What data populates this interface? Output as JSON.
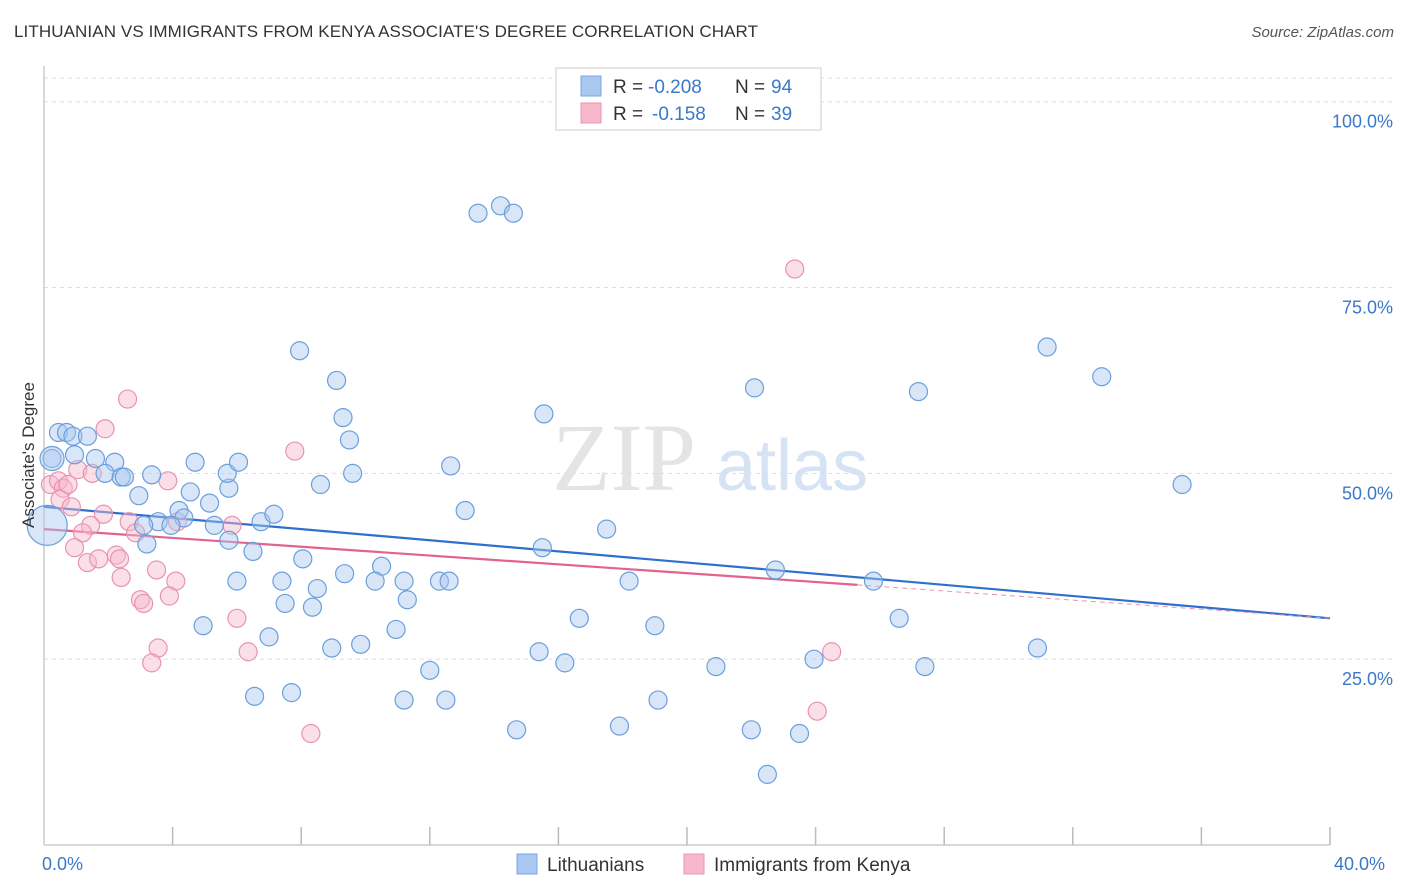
{
  "title": "LITHUANIAN VS IMMIGRANTS FROM KENYA ASSOCIATE'S DEGREE CORRELATION CHART",
  "source": "Source: ZipAtlas.com",
  "watermark": {
    "zip": "ZIP",
    "atlas": "atlas"
  },
  "legend": {
    "r_label": "R =",
    "n_label": "N =",
    "rows": [
      {
        "r": "-0.208",
        "n": "94",
        "color": "#a9c8f0"
      },
      {
        "r": "-0.158",
        "n": "39",
        "color": "#f7b8cc"
      }
    ]
  },
  "bottom_legend": [
    "Lithuanians",
    "Immigrants from Kenya"
  ],
  "colors": {
    "blue": "#3a78c9",
    "pink": "#e76f9a",
    "blue_fill": "#a9c8f0",
    "pink_fill": "#f7b8cc"
  },
  "chart_data": {
    "type": "scatter",
    "xlabel": "",
    "ylabel": "Associate's Degree",
    "xlim": [
      0,
      40
    ],
    "ylim": [
      0,
      104
    ],
    "x_tick_labels": [
      "0.0%",
      "40.0%"
    ],
    "y_ticks": [
      25,
      50,
      75,
      100
    ],
    "y_tick_labels": [
      "25.0%",
      "50.0%",
      "75.0%",
      "100.0%"
    ],
    "grid": "horizontal dashed",
    "legend_position": "top-center",
    "series": [
      {
        "name": "Lithuanians",
        "r": -0.208,
        "n": 94,
        "trend": [
          [
            0,
            45.5
          ],
          [
            40,
            30.5
          ]
        ],
        "points": [
          [
            0.25,
            52
          ],
          [
            0.45,
            55.5
          ],
          [
            0.7,
            55.5
          ],
          [
            0.9,
            55
          ],
          [
            1.35,
            55
          ],
          [
            0.95,
            52.5
          ],
          [
            1.6,
            52
          ],
          [
            2.2,
            51.5
          ],
          [
            1.9,
            50
          ],
          [
            2.4,
            49.5
          ],
          [
            2.5,
            49.5
          ],
          [
            3.35,
            49.8
          ],
          [
            2.95,
            47
          ],
          [
            4.7,
            51.5
          ],
          [
            4.55,
            47.5
          ],
          [
            5.75,
            48
          ],
          [
            5.7,
            50
          ],
          [
            6.05,
            51.5
          ],
          [
            5.15,
            46
          ],
          [
            4.2,
            45
          ],
          [
            4.35,
            44
          ],
          [
            3.55,
            43.5
          ],
          [
            3.95,
            43
          ],
          [
            3.1,
            43
          ],
          [
            5.3,
            43
          ],
          [
            6.75,
            43.5
          ],
          [
            7.15,
            44.5
          ],
          [
            3.2,
            40.5
          ],
          [
            5.75,
            41
          ],
          [
            6.5,
            39.5
          ],
          [
            8.05,
            38.5
          ],
          [
            8.6,
            48.5
          ],
          [
            9.6,
            50
          ],
          [
            9.3,
            57.5
          ],
          [
            9.5,
            54.5
          ],
          [
            9.1,
            62.5
          ],
          [
            7.95,
            66.5
          ],
          [
            10.5,
            37.5
          ],
          [
            10.3,
            35.5
          ],
          [
            9.35,
            36.5
          ],
          [
            11.2,
            35.5
          ],
          [
            12.3,
            35.5
          ],
          [
            12.6,
            35.5
          ],
          [
            6.0,
            35.5
          ],
          [
            7.4,
            35.5
          ],
          [
            8.5,
            34.5
          ],
          [
            7.5,
            32.5
          ],
          [
            8.35,
            32
          ],
          [
            11.3,
            33
          ],
          [
            10.95,
            29
          ],
          [
            8.95,
            26.5
          ],
          [
            9.85,
            27
          ],
          [
            12.0,
            23.5
          ],
          [
            7.0,
            28
          ],
          [
            4.95,
            29.5
          ],
          [
            6.55,
            20
          ],
          [
            7.7,
            20.5
          ],
          [
            11.2,
            19.5
          ],
          [
            12.5,
            19.5
          ],
          [
            12.65,
            51
          ],
          [
            13.1,
            45
          ],
          [
            14.7,
            15.5
          ],
          [
            15.5,
            40
          ],
          [
            15.55,
            58
          ],
          [
            17.5,
            42.5
          ],
          [
            15.4,
            26
          ],
          [
            16.2,
            24.5
          ],
          [
            16.65,
            30.5
          ],
          [
            18.2,
            35.5
          ],
          [
            19.0,
            29.5
          ],
          [
            19.1,
            19.5
          ],
          [
            20.9,
            24
          ],
          [
            17.9,
            16
          ],
          [
            22.75,
            37
          ],
          [
            22.0,
            15.5
          ],
          [
            22.5,
            9.5
          ],
          [
            22.1,
            61.5
          ],
          [
            23.5,
            15
          ],
          [
            23.95,
            25
          ],
          [
            25.8,
            35.5
          ],
          [
            26.6,
            30.5
          ],
          [
            27.4,
            24
          ],
          [
            27.2,
            61
          ],
          [
            30.9,
            26.5
          ],
          [
            31.2,
            67
          ],
          [
            32.9,
            63
          ],
          [
            35.4,
            48.5
          ],
          [
            13.5,
            85
          ],
          [
            14.2,
            86
          ],
          [
            14.6,
            85
          ]
        ],
        "sizes_big": [
          [
            0.25,
            52
          ],
          [
            0.1,
            43
          ]
        ]
      },
      {
        "name": "Immigrants from Kenya",
        "r": -0.158,
        "n": 39,
        "trend": [
          [
            0,
            42.5
          ],
          [
            25.3,
            35
          ]
        ],
        "trend_dashed": [
          [
            25.3,
            35
          ],
          [
            40,
            30.5
          ]
        ],
        "points": [
          [
            0.2,
            48.5
          ],
          [
            0.45,
            49
          ],
          [
            0.6,
            48
          ],
          [
            0.75,
            48.5
          ],
          [
            0.5,
            46.5
          ],
          [
            0.85,
            45.5
          ],
          [
            1.05,
            50.5
          ],
          [
            1.5,
            50
          ],
          [
            1.9,
            56
          ],
          [
            2.6,
            60
          ],
          [
            1.85,
            44.5
          ],
          [
            1.45,
            43
          ],
          [
            1.2,
            42
          ],
          [
            2.65,
            43.5
          ],
          [
            2.85,
            42
          ],
          [
            3.85,
            49
          ],
          [
            4.15,
            43.5
          ],
          [
            0.95,
            40
          ],
          [
            1.35,
            38
          ],
          [
            1.7,
            38.5
          ],
          [
            2.25,
            39
          ],
          [
            2.35,
            38.5
          ],
          [
            2.4,
            36
          ],
          [
            3.5,
            37
          ],
          [
            3.0,
            33
          ],
          [
            3.1,
            32.5
          ],
          [
            4.1,
            35.5
          ],
          [
            3.9,
            33.5
          ],
          [
            5.85,
            43
          ],
          [
            6.0,
            30.5
          ],
          [
            6.35,
            26
          ],
          [
            3.55,
            26.5
          ],
          [
            3.35,
            24.5
          ],
          [
            7.8,
            53
          ],
          [
            8.3,
            15
          ],
          [
            23.35,
            77.5
          ],
          [
            24.5,
            26
          ],
          [
            24.05,
            18
          ]
        ]
      }
    ]
  }
}
